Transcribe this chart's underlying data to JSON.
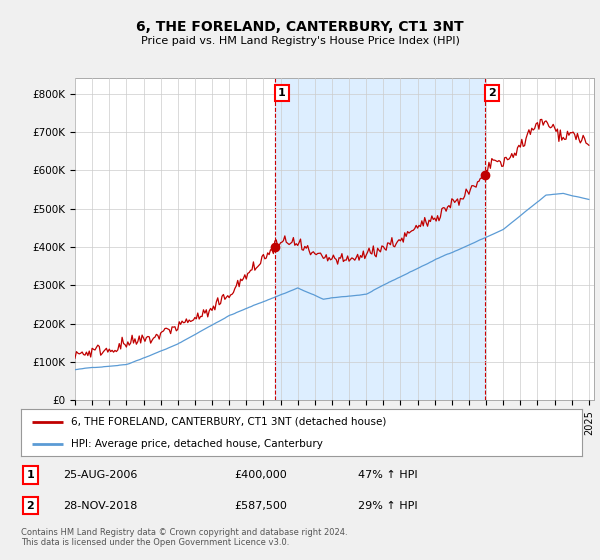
{
  "title": "6, THE FORELAND, CANTERBURY, CT1 3NT",
  "subtitle": "Price paid vs. HM Land Registry's House Price Index (HPI)",
  "ylabel_ticks": [
    "£0",
    "£100K",
    "£200K",
    "£300K",
    "£400K",
    "£500K",
    "£600K",
    "£700K",
    "£800K"
  ],
  "ytick_values": [
    0,
    100000,
    200000,
    300000,
    400000,
    500000,
    600000,
    700000,
    800000
  ],
  "ylim": [
    0,
    840000
  ],
  "xlim_start": 1995.0,
  "xlim_end": 2025.3,
  "hpi_color": "#5b9bd5",
  "price_color": "#c00000",
  "shade_color": "#ddeeff",
  "marker1_date": 2006.65,
  "marker1_price": 400000,
  "marker1_label": "1",
  "marker2_date": 2018.92,
  "marker2_price": 587500,
  "marker2_label": "2",
  "legend_line1": "6, THE FORELAND, CANTERBURY, CT1 3NT (detached house)",
  "legend_line2": "HPI: Average price, detached house, Canterbury",
  "table_row1_num": "1",
  "table_row1_date": "25-AUG-2006",
  "table_row1_price": "£400,000",
  "table_row1_hpi": "47% ↑ HPI",
  "table_row2_num": "2",
  "table_row2_date": "28-NOV-2018",
  "table_row2_price": "£587,500",
  "table_row2_hpi": "29% ↑ HPI",
  "footnote": "Contains HM Land Registry data © Crown copyright and database right 2024.\nThis data is licensed under the Open Government Licence v3.0.",
  "background_color": "#f0f0f0",
  "plot_bg_color": "#ffffff",
  "grid_color": "#cccccc",
  "vline_color": "#cc0000"
}
